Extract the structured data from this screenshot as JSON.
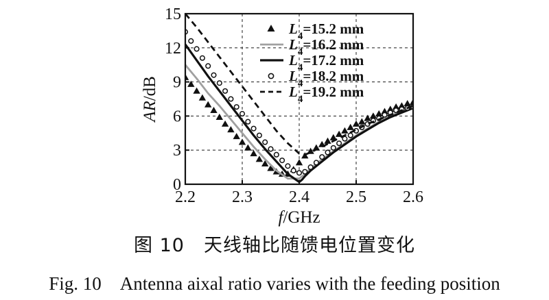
{
  "chart_data": {
    "type": "line",
    "xlabel": "f/GHz",
    "ylabel": "AR/dB",
    "xlim": [
      2.2,
      2.6
    ],
    "ylim": [
      0,
      15
    ],
    "xticks": [
      "2.2",
      "2.3",
      "2.4",
      "2.5",
      "2.6"
    ],
    "yticks": [
      "0",
      "3",
      "6",
      "9",
      "12",
      "15"
    ],
    "grid": "dashed",
    "legend_position": "top-right",
    "series": [
      {
        "name": "L4=15.2 mm",
        "label_main": "L",
        "label_sub": "4",
        "label_rest": "=15.2 mm",
        "style": "triangle",
        "color": "#111111",
        "x": [
          2.2,
          2.21,
          2.22,
          2.23,
          2.24,
          2.25,
          2.26,
          2.27,
          2.28,
          2.29,
          2.3,
          2.31,
          2.32,
          2.33,
          2.34,
          2.35,
          2.36,
          2.37,
          2.38,
          2.39,
          2.4,
          2.41,
          2.42,
          2.43,
          2.44,
          2.45,
          2.46,
          2.47,
          2.48,
          2.49,
          2.5,
          2.51,
          2.52,
          2.53,
          2.54,
          2.55,
          2.56,
          2.57,
          2.58,
          2.59,
          2.6
        ],
        "y": [
          9.4,
          8.8,
          8.2,
          7.6,
          7.0,
          6.5,
          5.9,
          5.3,
          4.8,
          4.2,
          3.7,
          3.2,
          2.7,
          2.2,
          1.8,
          1.4,
          1.1,
          0.9,
          0.9,
          1.3,
          1.9,
          2.5,
          2.9,
          3.2,
          3.5,
          3.8,
          4.1,
          4.4,
          4.7,
          5.0,
          5.3,
          5.5,
          5.8,
          6.0,
          6.2,
          6.4,
          6.6,
          6.8,
          6.9,
          7.1,
          7.2
        ]
      },
      {
        "name": "L4=16.2 mm",
        "label_main": "L",
        "label_sub": "4",
        "label_rest": "=16.2 mm",
        "style": "gray",
        "color": "#a0a0a0",
        "x": [
          2.2,
          2.22,
          2.24,
          2.26,
          2.28,
          2.3,
          2.32,
          2.34,
          2.36,
          2.38,
          2.4,
          2.41,
          2.42,
          2.44,
          2.46,
          2.48,
          2.5,
          2.52,
          2.54,
          2.56,
          2.58,
          2.6
        ],
        "y": [
          10.5,
          9.3,
          8.0,
          6.9,
          5.7,
          4.5,
          3.3,
          2.2,
          1.2,
          0.5,
          0.5,
          0.9,
          1.4,
          2.2,
          2.9,
          3.6,
          4.3,
          4.9,
          5.5,
          6.0,
          6.5,
          6.9
        ]
      },
      {
        "name": "L4=17.2 mm",
        "label_main": "L",
        "label_sub": "4",
        "label_rest": "=17.2 mm",
        "style": "solid",
        "color": "#111111",
        "x": [
          2.2,
          2.22,
          2.24,
          2.26,
          2.28,
          2.3,
          2.32,
          2.34,
          2.36,
          2.38,
          2.4,
          2.405,
          2.41,
          2.42,
          2.44,
          2.46,
          2.48,
          2.5,
          2.52,
          2.54,
          2.56,
          2.58,
          2.6
        ],
        "y": [
          12.3,
          10.9,
          9.5,
          8.2,
          6.9,
          5.6,
          4.3,
          3.1,
          2.0,
          0.9,
          0.2,
          0.4,
          0.7,
          1.2,
          2.0,
          2.8,
          3.5,
          4.2,
          4.8,
          5.4,
          5.9,
          6.3,
          6.7
        ]
      },
      {
        "name": "L4=18.2 mm",
        "label_main": "L",
        "label_sub": "4",
        "label_rest": "=18.2 mm",
        "style": "circle",
        "color": "#111111",
        "x": [
          2.2,
          2.21,
          2.22,
          2.23,
          2.24,
          2.25,
          2.26,
          2.27,
          2.28,
          2.29,
          2.3,
          2.31,
          2.32,
          2.33,
          2.34,
          2.35,
          2.36,
          2.37,
          2.38,
          2.39,
          2.4,
          2.41,
          2.42,
          2.43,
          2.44,
          2.45,
          2.46,
          2.47,
          2.48,
          2.49,
          2.5,
          2.51,
          2.52,
          2.53,
          2.54,
          2.55,
          2.56,
          2.57,
          2.58,
          2.59,
          2.6
        ],
        "y": [
          13.4,
          12.6,
          11.9,
          11.1,
          10.4,
          9.6,
          8.9,
          8.2,
          7.5,
          6.8,
          6.2,
          5.5,
          4.9,
          4.3,
          3.7,
          3.1,
          2.6,
          2.1,
          1.6,
          1.2,
          1.0,
          1.1,
          1.5,
          1.9,
          2.4,
          2.8,
          3.2,
          3.6,
          4.0,
          4.3,
          4.7,
          5.0,
          5.3,
          5.6,
          5.8,
          6.1,
          6.3,
          6.5,
          6.6,
          6.7,
          6.8
        ]
      },
      {
        "name": "L4=19.2 mm",
        "label_main": "L",
        "label_sub": "4",
        "label_rest": "=19.2 mm",
        "style": "dashed",
        "color": "#111111",
        "x": [
          2.2,
          2.22,
          2.24,
          2.26,
          2.28,
          2.3,
          2.32,
          2.34,
          2.36,
          2.38,
          2.4,
          2.41,
          2.42,
          2.44,
          2.46,
          2.48,
          2.5,
          2.52,
          2.54,
          2.56,
          2.58,
          2.6
        ],
        "y": [
          15.0,
          13.8,
          12.5,
          11.2,
          9.9,
          8.6,
          7.3,
          6.0,
          4.7,
          3.6,
          2.7,
          2.6,
          2.8,
          3.3,
          3.8,
          4.3,
          4.8,
          5.3,
          5.7,
          6.1,
          6.5,
          6.9
        ]
      }
    ]
  },
  "caption": {
    "cn": "图 10　天线轴比随馈电位置变化",
    "en": "Fig. 10　Antenna aixal ratio varies with the feeding position"
  }
}
